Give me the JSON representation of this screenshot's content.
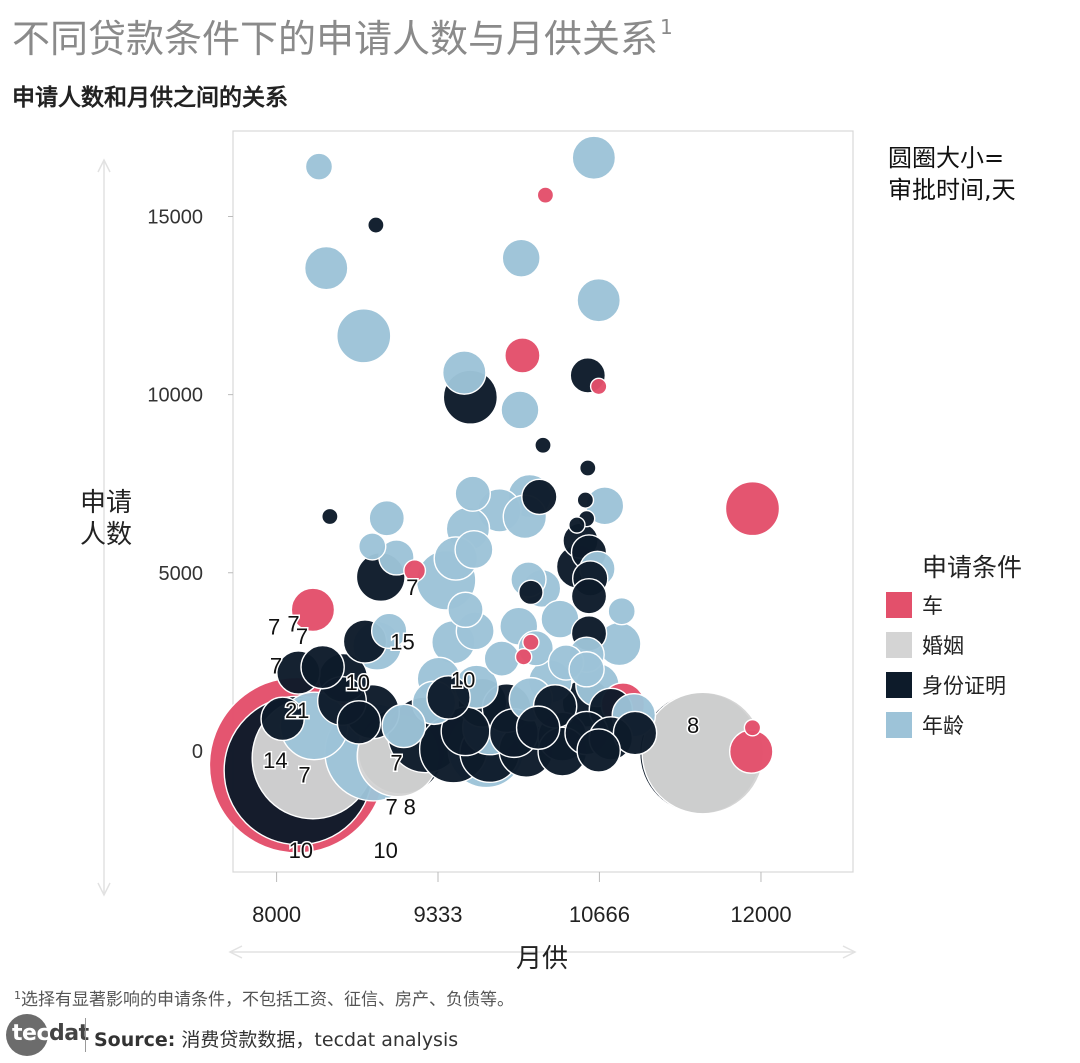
{
  "header": {
    "title": "不同贷款条件下的申请人数与月供关系",
    "title_sup": "1",
    "subtitle": "申请人数和月供之间的关系"
  },
  "size_note": {
    "line1": "圆圈大小=",
    "line2": "审批时间,天"
  },
  "legend": {
    "title": "申请条件",
    "items": [
      {
        "label": "车",
        "color": "#e3506b"
      },
      {
        "label": "婚姻",
        "color": "#d4d4d4"
      },
      {
        "label": "身份证明",
        "color": "#0d1b2a"
      },
      {
        "label": "年龄",
        "color": "#9dc3d8"
      }
    ]
  },
  "footnote": {
    "sup": "1",
    "text": "选择有显著影响的申请条件，不包括工资、征信、房产、负债等。"
  },
  "logo": {
    "text_a": "tec",
    "text_b": "dat"
  },
  "source": {
    "label": "Source:",
    "text": " 消费贷款数据，tecdat analysis"
  },
  "chart_data": {
    "type": "scatter",
    "xlabel": "月供",
    "ylabel_lines": [
      "申请",
      "人数"
    ],
    "xlim": [
      7640,
      12760
    ],
    "ylim": [
      -3400,
      17400
    ],
    "x_ticks": [
      8000,
      9333,
      10666,
      12000
    ],
    "y_ticks": [
      0,
      5000,
      10000,
      15000
    ],
    "series_colors": {
      "车": "#e3506b",
      "婚姻": "#d4d4d4",
      "身份证明": "#0d1b2a",
      "年龄": "#9dc3d8"
    },
    "points": [
      {
        "x": 8350,
        "y": 16400,
        "size": 1.0,
        "category": "年龄"
      },
      {
        "x": 10620,
        "y": 16650,
        "size": 1.6,
        "category": "年龄"
      },
      {
        "x": 10220,
        "y": 15600,
        "size": 0.6,
        "category": "车"
      },
      {
        "x": 8820,
        "y": 14760,
        "size": 0.6,
        "category": "身份证明"
      },
      {
        "x": 8410,
        "y": 13550,
        "size": 1.6,
        "category": "年龄"
      },
      {
        "x": 10020,
        "y": 13830,
        "size": 1.4,
        "category": "年龄"
      },
      {
        "x": 10660,
        "y": 12650,
        "size": 1.6,
        "category": "年龄"
      },
      {
        "x": 8720,
        "y": 11650,
        "size": 2.0,
        "category": "年龄"
      },
      {
        "x": 10030,
        "y": 11100,
        "size": 1.3,
        "category": "车"
      },
      {
        "x": 9550,
        "y": 10620,
        "size": 1.6,
        "category": "年龄"
      },
      {
        "x": 10570,
        "y": 10540,
        "size": 1.3,
        "category": "身份证明"
      },
      {
        "x": 9600,
        "y": 9930,
        "size": 2.0,
        "category": "身份证明"
      },
      {
        "x": 10010,
        "y": 9570,
        "size": 1.4,
        "category": "年龄"
      },
      {
        "x": 10660,
        "y": 10230,
        "size": 0.6,
        "category": "车"
      },
      {
        "x": 10200,
        "y": 8580,
        "size": 0.6,
        "category": "身份证明"
      },
      {
        "x": 10570,
        "y": 7940,
        "size": 0.6,
        "category": "身份证明"
      },
      {
        "x": 9620,
        "y": 7220,
        "size": 1.3,
        "category": "年龄"
      },
      {
        "x": 10090,
        "y": 7150,
        "size": 1.6,
        "category": "年龄"
      },
      {
        "x": 10170,
        "y": 7130,
        "size": 1.3,
        "category": "身份证明"
      },
      {
        "x": 9840,
        "y": 6750,
        "size": 1.6,
        "category": "年龄"
      },
      {
        "x": 10050,
        "y": 6570,
        "size": 1.6,
        "category": "年龄"
      },
      {
        "x": 10710,
        "y": 6880,
        "size": 1.4,
        "category": "年龄"
      },
      {
        "x": 8910,
        "y": 6530,
        "size": 1.3,
        "category": "年龄"
      },
      {
        "x": 9580,
        "y": 6230,
        "size": 1.6,
        "category": "年龄"
      },
      {
        "x": 8440,
        "y": 6580,
        "size": 0.6,
        "category": "身份证明"
      },
      {
        "x": 11930,
        "y": 6800,
        "size": 2.0,
        "category": "车"
      },
      {
        "x": 10550,
        "y": 7040,
        "size": 0.6,
        "category": "身份证明"
      },
      {
        "x": 10560,
        "y": 6520,
        "size": 0.6,
        "category": "身份证明"
      },
      {
        "x": 10480,
        "y": 6340,
        "size": 0.6,
        "category": "身份证明"
      },
      {
        "x": 10510,
        "y": 5900,
        "size": 1.3,
        "category": "身份证明"
      },
      {
        "x": 8790,
        "y": 5740,
        "size": 1.0,
        "category": "年龄"
      },
      {
        "x": 9630,
        "y": 5650,
        "size": 1.4,
        "category": "年龄"
      },
      {
        "x": 8990,
        "y": 5430,
        "size": 1.3,
        "category": "年龄"
      },
      {
        "x": 9480,
        "y": 5400,
        "size": 1.6,
        "category": "年龄"
      },
      {
        "x": 10580,
        "y": 5570,
        "size": 1.3,
        "category": "身份证明"
      },
      {
        "x": 10490,
        "y": 5170,
        "size": 1.6,
        "category": "身份证明"
      },
      {
        "x": 10650,
        "y": 5110,
        "size": 1.3,
        "category": "年龄"
      },
      {
        "x": 9400,
        "y": 4790,
        "size": 2.2,
        "category": "年龄"
      },
      {
        "x": 9140,
        "y": 5060,
        "size": 0.8,
        "category": "车"
      },
      {
        "x": 8860,
        "y": 4880,
        "size": 1.8,
        "category": "身份证明"
      },
      {
        "x": 10590,
        "y": 4840,
        "size": 1.3,
        "category": "身份证明"
      },
      {
        "x": 10080,
        "y": 4810,
        "size": 1.3,
        "category": "年龄"
      },
      {
        "x": 10190,
        "y": 4560,
        "size": 1.4,
        "category": "年龄"
      },
      {
        "x": 10100,
        "y": 4450,
        "size": 0.9,
        "category": "身份证明"
      },
      {
        "x": 10580,
        "y": 4340,
        "size": 1.3,
        "category": "身份证明"
      },
      {
        "x": 9560,
        "y": 3960,
        "size": 1.3,
        "category": "年龄"
      },
      {
        "x": 10850,
        "y": 3920,
        "size": 1.0,
        "category": "年龄"
      },
      {
        "x": 8300,
        "y": 3960,
        "size": 1.6,
        "category": "车"
      },
      {
        "x": 10000,
        "y": 3500,
        "size": 1.4,
        "category": "年龄"
      },
      {
        "x": 10340,
        "y": 3700,
        "size": 1.4,
        "category": "年龄"
      },
      {
        "x": 9640,
        "y": 3370,
        "size": 1.4,
        "category": "年龄"
      },
      {
        "x": 9460,
        "y": 3050,
        "size": 1.6,
        "category": "年龄"
      },
      {
        "x": 10580,
        "y": 3300,
        "size": 1.3,
        "category": "身份证明"
      },
      {
        "x": 8730,
        "y": 3070,
        "size": 1.6,
        "category": "身份证明"
      },
      {
        "x": 8830,
        "y": 2950,
        "size": 1.8,
        "category": "年龄"
      },
      {
        "x": 8930,
        "y": 3370,
        "size": 1.3,
        "category": "年龄"
      },
      {
        "x": 10100,
        "y": 3050,
        "size": 0.6,
        "category": "车"
      },
      {
        "x": 10140,
        "y": 2880,
        "size": 1.3,
        "category": "年龄"
      },
      {
        "x": 10560,
        "y": 2700,
        "size": 1.3,
        "category": "年龄"
      },
      {
        "x": 10830,
        "y": 3000,
        "size": 1.6,
        "category": "年龄"
      },
      {
        "x": 9860,
        "y": 2590,
        "size": 1.3,
        "category": "年龄"
      },
      {
        "x": 10040,
        "y": 2640,
        "size": 0.6,
        "category": "车"
      },
      {
        "x": 10390,
        "y": 2480,
        "size": 1.3,
        "category": "年龄"
      },
      {
        "x": 10560,
        "y": 2290,
        "size": 1.3,
        "category": "年龄"
      },
      {
        "x": 8180,
        "y": 2200,
        "size": 1.6,
        "category": "身份证明"
      },
      {
        "x": 8380,
        "y": 2350,
        "size": 1.6,
        "category": "身份证明"
      },
      {
        "x": 8550,
        "y": 2050,
        "size": 1.8,
        "category": "身份证明"
      },
      {
        "x": 9340,
        "y": 2020,
        "size": 1.6,
        "category": "年龄"
      },
      {
        "x": 9650,
        "y": 1800,
        "size": 1.6,
        "category": "年龄"
      },
      {
        "x": 10260,
        "y": 1950,
        "size": 1.6,
        "category": "年龄"
      },
      {
        "x": 10650,
        "y": 1850,
        "size": 1.6,
        "category": "年龄"
      },
      {
        "x": 10860,
        "y": 1300,
        "size": 1.6,
        "category": "车"
      },
      {
        "x": 8540,
        "y": 1400,
        "size": 1.8,
        "category": "身份证明"
      },
      {
        "x": 8790,
        "y": 1100,
        "size": 2.0,
        "category": "身份证明"
      },
      {
        "x": 9300,
        "y": 1350,
        "size": 1.6,
        "category": "年龄"
      },
      {
        "x": 9420,
        "y": 1500,
        "size": 1.6,
        "category": "身份证明"
      },
      {
        "x": 9700,
        "y": 1350,
        "size": 1.8,
        "category": "身份证明"
      },
      {
        "x": 9900,
        "y": 1200,
        "size": 1.8,
        "category": "身份证明"
      },
      {
        "x": 10100,
        "y": 1450,
        "size": 1.6,
        "category": "年龄"
      },
      {
        "x": 10300,
        "y": 1250,
        "size": 1.6,
        "category": "身份证明"
      },
      {
        "x": 10560,
        "y": 1350,
        "size": 1.8,
        "category": "身份证明"
      },
      {
        "x": 10760,
        "y": 1150,
        "size": 1.6,
        "category": "身份证明"
      },
      {
        "x": 10950,
        "y": 1000,
        "size": 1.6,
        "category": "年龄"
      },
      {
        "x": 8050,
        "y": 900,
        "size": 1.6,
        "category": "身份证明"
      },
      {
        "x": 8310,
        "y": 700,
        "size": 2.5,
        "category": "年龄"
      },
      {
        "x": 8680,
        "y": 800,
        "size": 1.6,
        "category": "身份证明"
      },
      {
        "x": 9050,
        "y": 700,
        "size": 1.6,
        "category": "年龄"
      },
      {
        "x": 9230,
        "y": 450,
        "size": 2.8,
        "category": "身份证明"
      },
      {
        "x": 9560,
        "y": 550,
        "size": 1.8,
        "category": "身份证明"
      },
      {
        "x": 9760,
        "y": 650,
        "size": 2.0,
        "category": "年龄"
      },
      {
        "x": 9960,
        "y": 500,
        "size": 1.8,
        "category": "身份证明"
      },
      {
        "x": 10160,
        "y": 650,
        "size": 1.6,
        "category": "身份证明"
      },
      {
        "x": 10360,
        "y": 400,
        "size": 1.8,
        "category": "身份证明"
      },
      {
        "x": 10560,
        "y": 500,
        "size": 1.6,
        "category": "身份证明"
      },
      {
        "x": 10760,
        "y": 350,
        "size": 1.6,
        "category": "身份证明"
      },
      {
        "x": 10960,
        "y": 500,
        "size": 1.6,
        "category": "身份证明"
      },
      {
        "x": 9460,
        "y": 50,
        "size": 2.5,
        "category": "身份证明"
      },
      {
        "x": 9760,
        "y": -50,
        "size": 2.2,
        "category": "身份证明"
      },
      {
        "x": 10060,
        "y": 20,
        "size": 2.0,
        "category": "身份证明"
      },
      {
        "x": 10360,
        "y": -20,
        "size": 1.8,
        "category": "身份证明"
      },
      {
        "x": 10660,
        "y": 10,
        "size": 1.6,
        "category": "身份证明"
      },
      {
        "x": 8170,
        "y": -400,
        "size": 6.5,
        "category": "车"
      },
      {
        "x": 8300,
        "y": -200,
        "size": 4.5,
        "category": "婚姻"
      },
      {
        "x": 8180,
        "y": -550,
        "size": 5.5,
        "category": "身份证明"
      },
      {
        "x": 8800,
        "y": -40,
        "size": 3.6,
        "category": "年龄"
      },
      {
        "x": 9030,
        "y": 0,
        "size": 3.2,
        "category": "身份证明"
      },
      {
        "x": 9000,
        "y": -150,
        "size": 3.0,
        "category": "婚姻"
      },
      {
        "x": 9730,
        "y": 30,
        "size": 2.8,
        "category": "年龄"
      },
      {
        "x": 11500,
        "y": -60,
        "size": 4.5,
        "category": "身份证明"
      },
      {
        "x": 11520,
        "y": -60,
        "size": 4.5,
        "category": "婚姻"
      },
      {
        "x": 11920,
        "y": -20,
        "size": 1.6,
        "category": "车"
      },
      {
        "x": 11930,
        "y": 650,
        "size": 0.6,
        "category": "车"
      }
    ],
    "labels": [
      {
        "text": "7",
        "x": 7980,
        "y": 3270
      },
      {
        "text": "7",
        "x": 8140,
        "y": 3350
      },
      {
        "text": "7",
        "x": 8210,
        "y": 3000
      },
      {
        "text": "7",
        "x": 7995,
        "y": 2170
      },
      {
        "text": "15",
        "x": 9040,
        "y": 2850
      },
      {
        "text": "7",
        "x": 9120,
        "y": 4380
      },
      {
        "text": "10",
        "x": 8670,
        "y": 1710
      },
      {
        "text": "10",
        "x": 9540,
        "y": 1780
      },
      {
        "text": "21",
        "x": 8170,
        "y": 920
      },
      {
        "text": "14",
        "x": 7990,
        "y": -480
      },
      {
        "text": "7",
        "x": 8230,
        "y": -890
      },
      {
        "text": "7",
        "x": 8990,
        "y": -550
      },
      {
        "text": "7",
        "x": 8950,
        "y": -1780
      },
      {
        "text": "8",
        "x": 9100,
        "y": -1780
      },
      {
        "text": "10",
        "x": 8200,
        "y": -3000
      },
      {
        "text": "10",
        "x": 8900,
        "y": -3000
      },
      {
        "text": "8",
        "x": 11440,
        "y": 500
      }
    ]
  }
}
